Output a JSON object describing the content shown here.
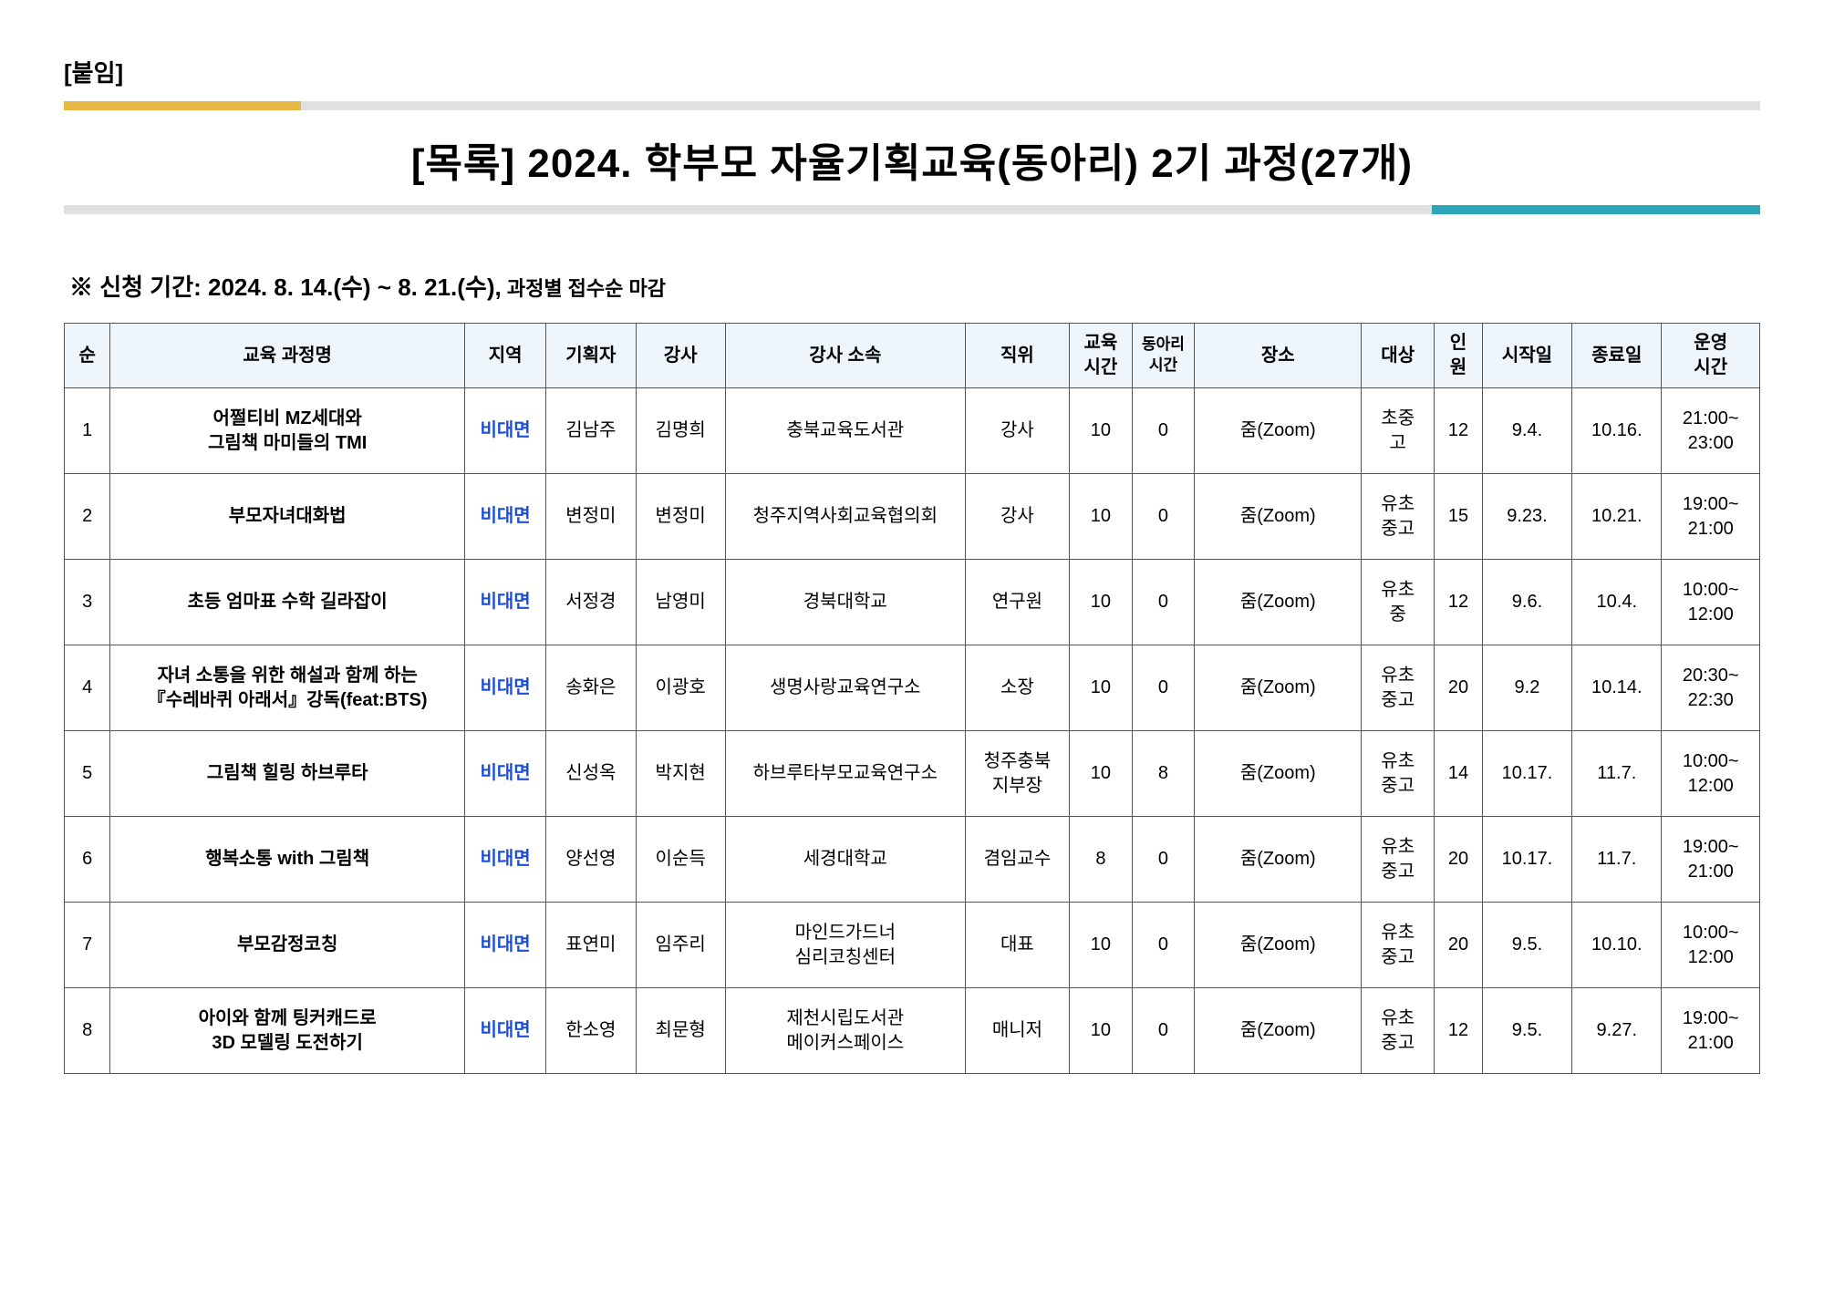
{
  "attachment_label": "[붙임]",
  "main_title": "[목록] 2024. 학부모 자율기획교육(동아리) 2기 과정(27개)",
  "period_prefix": "※ 신청 기간: 2024. ",
  "period_bold": "8. 14.(수) ~ 8. 21.(수),",
  "period_suffix": " 과정별 접수순 마감",
  "columns": {
    "no": "순",
    "name": "교육 과정명",
    "region": "지역",
    "planner": "기획자",
    "instructor": "강사",
    "affiliation": "강사 소속",
    "position": "직위",
    "edu_time": "교육\n시간",
    "club_time": "동아리\n시간",
    "place": "장소",
    "target": "대상",
    "capacity": "인\n원",
    "start": "시작일",
    "end": "종료일",
    "op_time": "운영\n시간"
  },
  "rows": [
    {
      "no": "1",
      "name": "어쩔티비 MZ세대와\n그림책 마미들의 TMI",
      "region": "비대면",
      "planner": "김남주",
      "instructor": "김명희",
      "affiliation": "충북교육도서관",
      "position": "강사",
      "edu_time": "10",
      "club_time": "0",
      "place": "줌(Zoom)",
      "target": "초중\n고",
      "capacity": "12",
      "start": "9.4.",
      "end": "10.16.",
      "op_time": "21:00~\n23:00"
    },
    {
      "no": "2",
      "name": "부모자녀대화법",
      "region": "비대면",
      "planner": "변정미",
      "instructor": "변정미",
      "affiliation": "청주지역사회교육협의회",
      "position": "강사",
      "edu_time": "10",
      "club_time": "0",
      "place": "줌(Zoom)",
      "target": "유초\n중고",
      "capacity": "15",
      "start": "9.23.",
      "end": "10.21.",
      "op_time": "19:00~\n21:00"
    },
    {
      "no": "3",
      "name": "초등 엄마표 수학 길라잡이",
      "region": "비대면",
      "planner": "서정경",
      "instructor": "남영미",
      "affiliation": "경북대학교",
      "position": "연구원",
      "edu_time": "10",
      "club_time": "0",
      "place": "줌(Zoom)",
      "target": "유초\n중",
      "capacity": "12",
      "start": "9.6.",
      "end": "10.4.",
      "op_time": "10:00~\n12:00"
    },
    {
      "no": "4",
      "name": "자녀 소통을 위한 해설과 함께 하는\n『수레바퀴 아래서』강독(feat:BTS)",
      "region": "비대면",
      "planner": "송화은",
      "instructor": "이광호",
      "affiliation": "생명사랑교육연구소",
      "position": "소장",
      "edu_time": "10",
      "club_time": "0",
      "place": "줌(Zoom)",
      "target": "유초\n중고",
      "capacity": "20",
      "start": "9.2",
      "end": "10.14.",
      "op_time": "20:30~\n22:30"
    },
    {
      "no": "5",
      "name": "그림책 힐링 하브루타",
      "region": "비대면",
      "planner": "신성옥",
      "instructor": "박지현",
      "affiliation": "하브루타부모교육연구소",
      "position": "청주충북\n지부장",
      "edu_time": "10",
      "club_time": "8",
      "place": "줌(Zoom)",
      "target": "유초\n중고",
      "capacity": "14",
      "start": "10.17.",
      "end": "11.7.",
      "op_time": "10:00~\n12:00"
    },
    {
      "no": "6",
      "name": "행복소통 with 그림책",
      "region": "비대면",
      "planner": "양선영",
      "instructor": "이순득",
      "affiliation": "세경대학교",
      "position": "겸임교수",
      "edu_time": "8",
      "club_time": "0",
      "place": "줌(Zoom)",
      "target": "유초\n중고",
      "capacity": "20",
      "start": "10.17.",
      "end": "11.7.",
      "op_time": "19:00~\n21:00"
    },
    {
      "no": "7",
      "name": "부모감정코칭",
      "region": "비대면",
      "planner": "표연미",
      "instructor": "임주리",
      "affiliation": "마인드가드너\n심리코칭센터",
      "position": "대표",
      "edu_time": "10",
      "club_time": "0",
      "place": "줌(Zoom)",
      "target": "유초\n중고",
      "capacity": "20",
      "start": "9.5.",
      "end": "10.10.",
      "op_time": "10:00~\n12:00"
    },
    {
      "no": "8",
      "name": "아이와 함께 팅커캐드로\n3D 모델링 도전하기",
      "region": "비대면",
      "planner": "한소영",
      "instructor": "최문형",
      "affiliation": "제천시립도서관\n메이커스페이스",
      "position": "매니저",
      "edu_time": "10",
      "club_time": "0",
      "place": "줌(Zoom)",
      "target": "유초\n중고",
      "capacity": "12",
      "start": "9.5.",
      "end": "9.27.",
      "op_time": "19:00~\n21:00"
    }
  ],
  "colors": {
    "header_bg": "#eef5fb",
    "border": "#555555",
    "region_text": "#1a4fd6",
    "bar_yellow": "#e8b947",
    "bar_gray": "#e0e0e0",
    "bar_teal": "#2ca6b8"
  }
}
